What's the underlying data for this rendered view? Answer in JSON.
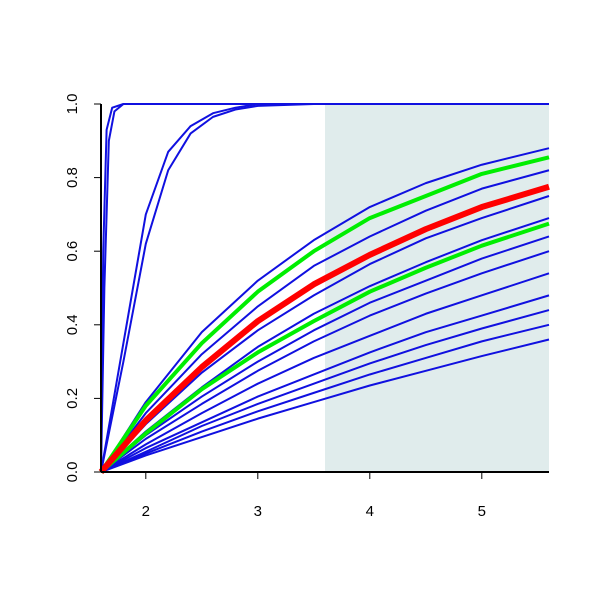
{
  "chart_data": {
    "type": "line",
    "xlim": [
      1.6,
      5.6
    ],
    "ylim": [
      0,
      1
    ],
    "xticks": [
      2,
      3,
      4,
      5
    ],
    "yticks": [
      {
        "value": 0,
        "label": "0.0"
      },
      {
        "value": 0.2,
        "label": "0.2"
      },
      {
        "value": 0.4,
        "label": "0.4"
      },
      {
        "value": 0.6,
        "label": "0.6"
      },
      {
        "value": 0.8,
        "label": "0.8"
      },
      {
        "value": 1,
        "label": "1.0"
      }
    ],
    "shaded_x": [
      3.6,
      5.6
    ],
    "shade_color": "#e0ecec",
    "x": [
      1.6,
      2.0,
      2.5,
      3.0,
      3.5,
      4.0,
      4.5,
      5.0,
      5.6
    ],
    "series": [
      {
        "color": "#1010e0",
        "width": 2,
        "x": [
          1.6,
          1.62,
          1.65,
          1.7,
          1.8,
          5.6
        ],
        "values": [
          0,
          0.6,
          0.93,
          0.99,
          1,
          1
        ]
      },
      {
        "color": "#1010e0",
        "width": 2,
        "x": [
          1.6,
          1.63,
          1.67,
          1.72,
          1.8,
          5.6
        ],
        "values": [
          0,
          0.5,
          0.9,
          0.98,
          1,
          1
        ]
      },
      {
        "color": "#1010e0",
        "width": 2,
        "x": [
          1.6,
          1.8,
          2.0,
          2.2,
          2.4,
          2.6,
          2.8,
          3.0,
          3.5,
          5.6
        ],
        "values": [
          0,
          0.35,
          0.7,
          0.87,
          0.94,
          0.975,
          0.99,
          1,
          1,
          1
        ]
      },
      {
        "color": "#1010e0",
        "width": 2,
        "x": [
          1.6,
          1.8,
          2.0,
          2.2,
          2.4,
          2.6,
          2.8,
          3.0,
          3.5,
          5.6
        ],
        "values": [
          0,
          0.3,
          0.62,
          0.82,
          0.92,
          0.965,
          0.985,
          0.995,
          1,
          1
        ]
      },
      {
        "color": "#1010e0",
        "width": 2,
        "values": [
          0,
          0.19,
          0.38,
          0.52,
          0.63,
          0.72,
          0.785,
          0.835,
          0.88
        ]
      },
      {
        "color": "#1010e0",
        "width": 2,
        "values": [
          0,
          0.16,
          0.32,
          0.45,
          0.56,
          0.64,
          0.71,
          0.77,
          0.82
        ]
      },
      {
        "color": "#1010e0",
        "width": 2,
        "values": [
          0,
          0.13,
          0.27,
          0.385,
          0.48,
          0.565,
          0.635,
          0.69,
          0.75
        ]
      },
      {
        "color": "#1010e0",
        "width": 2,
        "values": [
          0,
          0.11,
          0.23,
          0.34,
          0.43,
          0.505,
          0.57,
          0.63,
          0.69
        ]
      },
      {
        "color": "#1010e0",
        "width": 2,
        "values": [
          0,
          0.1,
          0.205,
          0.3,
          0.385,
          0.46,
          0.52,
          0.58,
          0.64
        ]
      },
      {
        "color": "#1010e0",
        "width": 2,
        "values": [
          0,
          0.09,
          0.185,
          0.275,
          0.355,
          0.425,
          0.485,
          0.54,
          0.6
        ]
      },
      {
        "color": "#1010e0",
        "width": 2,
        "values": [
          0,
          0.075,
          0.16,
          0.24,
          0.31,
          0.37,
          0.43,
          0.48,
          0.54
        ]
      },
      {
        "color": "#1010e0",
        "width": 2,
        "values": [
          0,
          0.065,
          0.135,
          0.205,
          0.265,
          0.325,
          0.38,
          0.425,
          0.48
        ]
      },
      {
        "color": "#1010e0",
        "width": 2,
        "values": [
          0,
          0.055,
          0.125,
          0.185,
          0.24,
          0.295,
          0.345,
          0.39,
          0.44
        ]
      },
      {
        "color": "#1010e0",
        "width": 2,
        "values": [
          0,
          0.05,
          0.11,
          0.165,
          0.215,
          0.265,
          0.31,
          0.355,
          0.4
        ]
      },
      {
        "color": "#1010e0",
        "width": 2,
        "values": [
          0,
          0.045,
          0.095,
          0.145,
          0.19,
          0.235,
          0.275,
          0.315,
          0.36
        ]
      },
      {
        "color": "#00ee00",
        "width": 4,
        "values": [
          0,
          0.18,
          0.35,
          0.49,
          0.6,
          0.69,
          0.75,
          0.81,
          0.855
        ]
      },
      {
        "color": "#00ee00",
        "width": 4,
        "values": [
          0,
          0.105,
          0.225,
          0.325,
          0.41,
          0.49,
          0.555,
          0.615,
          0.675
        ]
      },
      {
        "color": "#ff0000",
        "width": 6,
        "values": [
          0,
          0.14,
          0.285,
          0.41,
          0.51,
          0.59,
          0.66,
          0.72,
          0.775
        ]
      }
    ]
  }
}
